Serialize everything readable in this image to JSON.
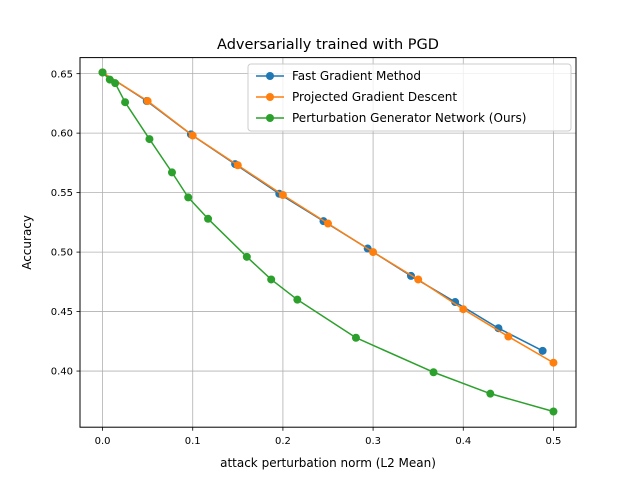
{
  "chart_data": {
    "type": "line",
    "title": "Adversarially trained with PGD",
    "xlabel": "attack perturbation norm (L2 Mean)",
    "ylabel": "Accuracy",
    "xlim": [
      -0.025,
      0.525
    ],
    "ylim": [
      0.3528,
      0.6635
    ],
    "xticks": [
      0.0,
      0.1,
      0.2,
      0.3,
      0.4,
      0.5
    ],
    "xtick_labels": [
      "0.0",
      "0.1",
      "0.2",
      "0.3",
      "0.4",
      "0.5"
    ],
    "yticks": [
      0.4,
      0.45,
      0.5,
      0.55,
      0.6,
      0.65
    ],
    "ytick_labels": [
      "0.40",
      "0.45",
      "0.50",
      "0.55",
      "0.60",
      "0.65"
    ],
    "grid": true,
    "legend_position": "top-right",
    "series": [
      {
        "name": "Fast Gradient Method",
        "color": "#1f77b4",
        "x": [
          0.0,
          0.049,
          0.098,
          0.147,
          0.196,
          0.245,
          0.294,
          0.342,
          0.391,
          0.439,
          0.488
        ],
        "y": [
          0.651,
          0.627,
          0.599,
          0.574,
          0.549,
          0.526,
          0.503,
          0.48,
          0.458,
          0.436,
          0.417
        ]
      },
      {
        "name": "Projected Gradient Descent",
        "color": "#ff7f0e",
        "x": [
          0.0,
          0.05,
          0.1,
          0.15,
          0.2,
          0.25,
          0.3,
          0.35,
          0.4,
          0.45,
          0.5
        ],
        "y": [
          0.651,
          0.627,
          0.598,
          0.573,
          0.548,
          0.524,
          0.5,
          0.477,
          0.452,
          0.429,
          0.407
        ]
      },
      {
        "name": "Perturbation Generator Network (Ours)",
        "color": "#2ca02c",
        "x": [
          0.0,
          0.008,
          0.014,
          0.025,
          0.052,
          0.077,
          0.095,
          0.117,
          0.16,
          0.187,
          0.216,
          0.281,
          0.367,
          0.43,
          0.5
        ],
        "y": [
          0.651,
          0.645,
          0.642,
          0.626,
          0.595,
          0.567,
          0.546,
          0.528,
          0.496,
          0.477,
          0.46,
          0.428,
          0.399,
          0.381,
          0.366
        ]
      }
    ]
  }
}
